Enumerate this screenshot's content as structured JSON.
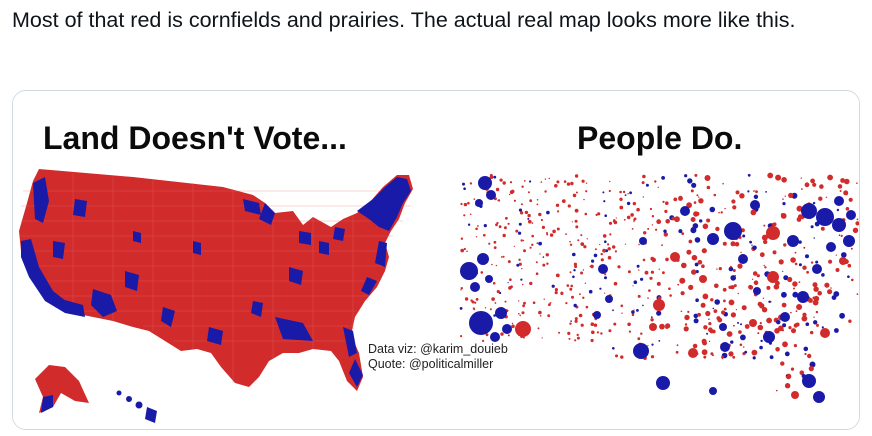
{
  "post": {
    "text": "Most of that red is cornfields and prairies. The actual real map looks more like this."
  },
  "image": {
    "left_title": "Land Doesn't Vote...",
    "right_title": "People Do.",
    "credit_line_1": "Data viz: @karim_douieb",
    "credit_line_2": "Quote: @politicalmiller"
  },
  "colors": {
    "red": "#d22b2b",
    "blue": "#1a1aa8",
    "border": "#cfd9de",
    "text": "#0f1419"
  }
}
